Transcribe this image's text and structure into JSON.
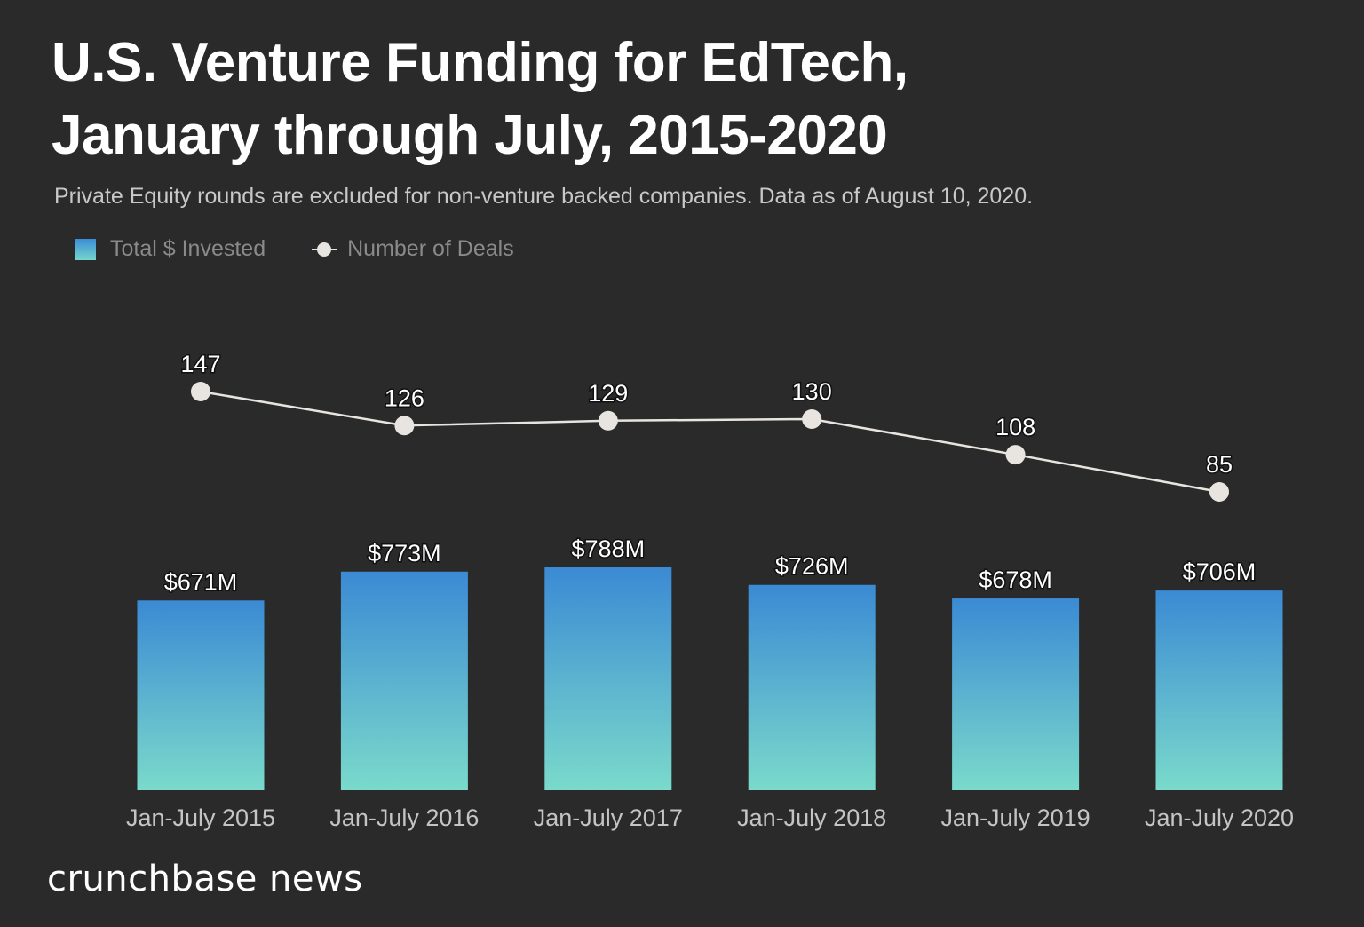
{
  "chart_data": {
    "type": "bar",
    "title": [
      "U.S. Venture Funding for EdTech,",
      "January through July, 2015-2020"
    ],
    "subtitle": "Private Equity rounds are excluded for non-venture backed companies. Data as of August 10, 2020.",
    "categories": [
      "Jan-July 2015",
      "Jan-July 2016",
      "Jan-July 2017",
      "Jan-July 2018",
      "Jan-July 2019",
      "Jan-July 2020"
    ],
    "series": [
      {
        "name": "Total $ Invested",
        "type": "bar",
        "unit": "USD millions",
        "values": [
          671,
          773,
          788,
          726,
          678,
          706
        ],
        "labels": [
          "$671M",
          "$773M",
          "$788M",
          "$726M",
          "$678M",
          "$706M"
        ],
        "color_top": "#3b8ad4",
        "color_bottom": "#7adacb"
      },
      {
        "name": "Number of Deals",
        "type": "line",
        "values": [
          147,
          126,
          129,
          130,
          108,
          85
        ],
        "labels": [
          "147",
          "126",
          "129",
          "130",
          "108",
          "85"
        ],
        "color": "#e8e4df"
      }
    ],
    "xlabel": "",
    "ylabel": "",
    "ylim_bars": [
      0,
      788
    ],
    "grid": false,
    "legend": "top-left"
  },
  "legend": {
    "bar_label": "Total $ Invested",
    "line_label": "Number of Deals"
  },
  "brand": "crunchbase news",
  "colors": {
    "background": "#2a2a2a",
    "title": "#ffffff",
    "subtitle": "#c8c8c8",
    "legend_text": "#8a8a8a",
    "axis_label": "#c4c4c4"
  }
}
